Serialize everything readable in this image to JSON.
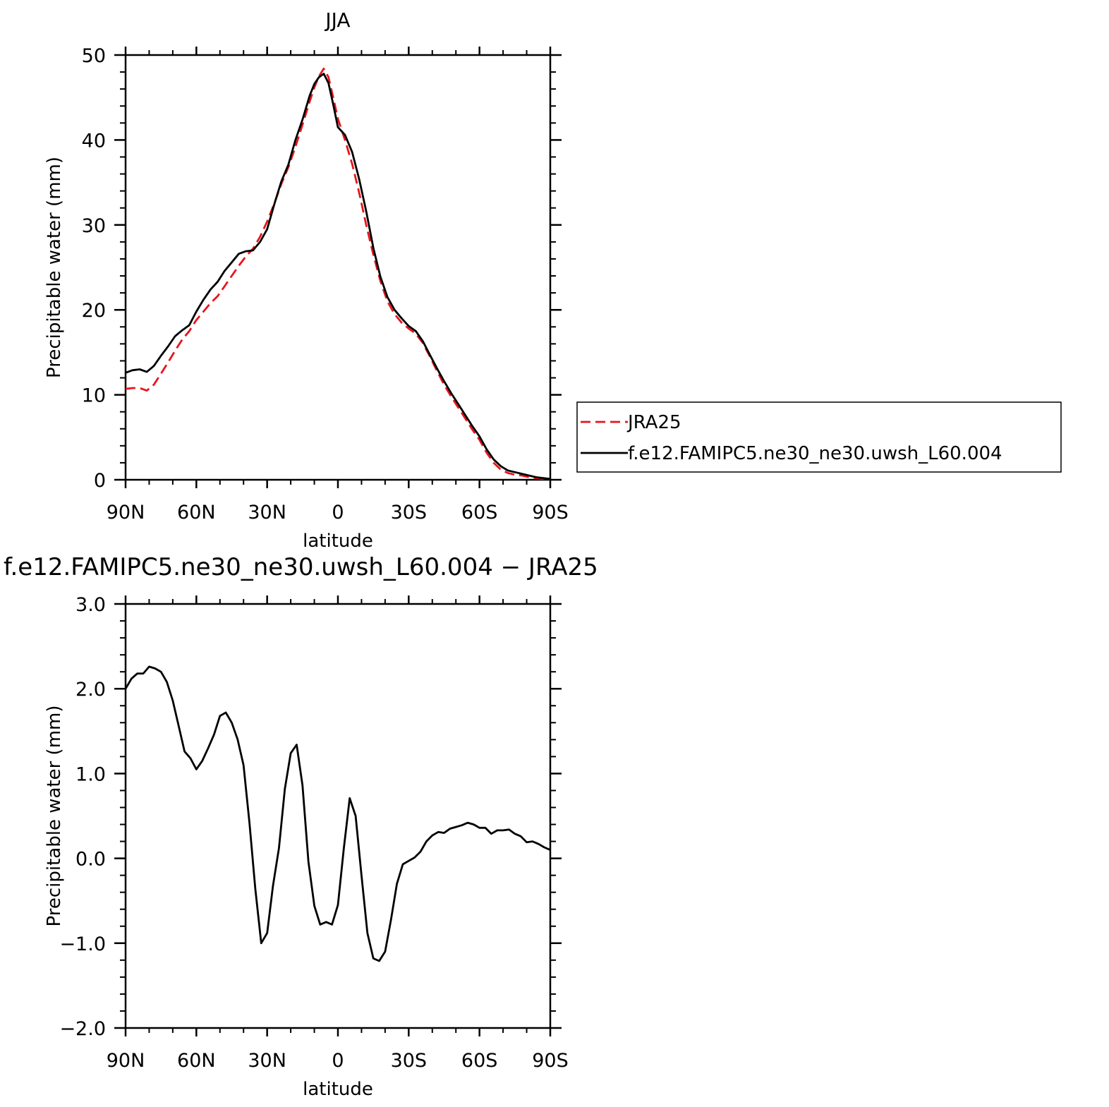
{
  "chart_data": [
    {
      "type": "line",
      "title": "JJA",
      "xlabel": "latitude",
      "ylabel": "Precipitable water (mm)",
      "xlim": [
        90,
        -90
      ],
      "ylim": [
        0,
        50
      ],
      "x_ticks": [
        90,
        60,
        30,
        0,
        -30,
        -60,
        -90
      ],
      "x_tick_labels": [
        "90N",
        "60N",
        "30N",
        "0",
        "30S",
        "60S",
        "90S"
      ],
      "y_ticks": [
        0,
        10,
        20,
        30,
        40,
        50
      ],
      "y_tick_labels": [
        "0",
        "10",
        "20",
        "30",
        "40",
        "50"
      ],
      "legend_position": "right",
      "series": [
        {
          "name": "JRA25",
          "color": "#e8141c",
          "dash": "dashed",
          "points": [
            [
              90,
              10.7
            ],
            [
              87,
              10.8
            ],
            [
              84,
              10.8
            ],
            [
              81,
              10.5
            ],
            [
              78,
              11.2
            ],
            [
              75,
              12.5
            ],
            [
              72,
              13.8
            ],
            [
              69,
              15.2
            ],
            [
              66,
              16.5
            ],
            [
              63,
              17.5
            ],
            [
              60,
              18.8
            ],
            [
              57,
              19.8
            ],
            [
              54,
              20.8
            ],
            [
              51,
              21.6
            ],
            [
              48,
              22.8
            ],
            [
              45,
              24.0
            ],
            [
              42,
              25.2
            ],
            [
              39,
              26.3
            ],
            [
              36,
              27.2
            ],
            [
              33,
              28.6
            ],
            [
              30,
              30.4
            ],
            [
              27,
              32.5
            ],
            [
              24,
              34.8
            ],
            [
              21,
              36.8
            ],
            [
              18,
              39.2
            ],
            [
              15,
              41.8
            ],
            [
              12,
              44.5
            ],
            [
              10,
              46.2
            ],
            [
              8,
              47.5
            ],
            [
              6,
              48.4
            ],
            [
              4,
              47.4
            ],
            [
              2,
              45.0
            ],
            [
              0,
              42.5
            ],
            [
              -3,
              40.0
            ],
            [
              -6,
              37.2
            ],
            [
              -9,
              33.8
            ],
            [
              -12,
              30.0
            ],
            [
              -15,
              26.5
            ],
            [
              -18,
              23.4
            ],
            [
              -21,
              21.0
            ],
            [
              -24,
              19.5
            ],
            [
              -27,
              18.5
            ],
            [
              -30,
              17.8
            ],
            [
              -33,
              17.2
            ],
            [
              -36,
              16.1
            ],
            [
              -39,
              14.5
            ],
            [
              -42,
              12.8
            ],
            [
              -45,
              11.2
            ],
            [
              -48,
              9.8
            ],
            [
              -51,
              8.5
            ],
            [
              -54,
              7.2
            ],
            [
              -57,
              5.9
            ],
            [
              -60,
              4.7
            ],
            [
              -63,
              3.2
            ],
            [
              -66,
              2.0
            ],
            [
              -69,
              1.2
            ],
            [
              -72,
              0.8
            ],
            [
              -75,
              0.6
            ],
            [
              -78,
              0.5
            ],
            [
              -81,
              0.3
            ],
            [
              -84,
              0.2
            ],
            [
              -87,
              0.1
            ],
            [
              -90,
              0.1
            ]
          ]
        },
        {
          "name": "f.e12.FAMIPC5.ne30_ne30.uwsh_L60.004",
          "color": "#000000",
          "dash": "solid",
          "points": [
            [
              90,
              12.6
            ],
            [
              87,
              12.9
            ],
            [
              84,
              13.0
            ],
            [
              81,
              12.7
            ],
            [
              78,
              13.4
            ],
            [
              75,
              14.6
            ],
            [
              72,
              15.7
            ],
            [
              69,
              16.9
            ],
            [
              66,
              17.6
            ],
            [
              63,
              18.2
            ],
            [
              60,
              19.8
            ],
            [
              57,
              21.2
            ],
            [
              54,
              22.4
            ],
            [
              51,
              23.3
            ],
            [
              48,
              24.6
            ],
            [
              45,
              25.6
            ],
            [
              42,
              26.6
            ],
            [
              39,
              26.9
            ],
            [
              36,
              27.0
            ],
            [
              33,
              28.0
            ],
            [
              30,
              29.5
            ],
            [
              27,
              32.4
            ],
            [
              24,
              35.1
            ],
            [
              21,
              37.1
            ],
            [
              18,
              40.0
            ],
            [
              15,
              42.4
            ],
            [
              12,
              45.2
            ],
            [
              10,
              46.6
            ],
            [
              8,
              47.4
            ],
            [
              6,
              47.8
            ],
            [
              4,
              46.7
            ],
            [
              2,
              44.2
            ],
            [
              0,
              41.5
            ],
            [
              -3,
              40.6
            ],
            [
              -6,
              38.6
            ],
            [
              -9,
              35.4
            ],
            [
              -12,
              31.6
            ],
            [
              -15,
              27.3
            ],
            [
              -18,
              23.9
            ],
            [
              -21,
              21.5
            ],
            [
              -24,
              20.0
            ],
            [
              -27,
              19.0
            ],
            [
              -30,
              18.1
            ],
            [
              -33,
              17.5
            ],
            [
              -36,
              16.3
            ],
            [
              -39,
              14.7
            ],
            [
              -42,
              13.1
            ],
            [
              -45,
              11.6
            ],
            [
              -48,
              10.2
            ],
            [
              -51,
              8.9
            ],
            [
              -54,
              7.6
            ],
            [
              -57,
              6.3
            ],
            [
              -60,
              5.1
            ],
            [
              -63,
              3.6
            ],
            [
              -66,
              2.4
            ],
            [
              -69,
              1.6
            ],
            [
              -72,
              1.1
            ],
            [
              -75,
              0.9
            ],
            [
              -78,
              0.7
            ],
            [
              -81,
              0.5
            ],
            [
              -84,
              0.3
            ],
            [
              -87,
              0.2
            ],
            [
              -90,
              0.1
            ]
          ]
        }
      ]
    },
    {
      "type": "line",
      "title": "f.e12.FAMIPC5.ne30_ne30.uwsh_L60.004 - JRA25",
      "xlabel": "latitude",
      "ylabel": "Precipitable water (mm)",
      "xlim": [
        90,
        -90
      ],
      "ylim": [
        -2.0,
        3.0
      ],
      "x_ticks": [
        90,
        60,
        30,
        0,
        -30,
        -60,
        -90
      ],
      "x_tick_labels": [
        "90N",
        "60N",
        "30N",
        "0",
        "30S",
        "60S",
        "90S"
      ],
      "y_ticks": [
        -2.0,
        -1.0,
        0.0,
        1.0,
        2.0,
        3.0
      ],
      "y_tick_labels": [
        "-2.0",
        "-1.0",
        "0.0",
        "1.0",
        "2.0",
        "3.0"
      ],
      "series": [
        {
          "name": "",
          "color": "#000000",
          "dash": "solid",
          "points": [
            [
              90,
              2.0
            ],
            [
              87.5,
              2.12
            ],
            [
              85,
              2.18
            ],
            [
              82.5,
              2.18
            ],
            [
              80,
              2.26
            ],
            [
              77.5,
              2.24
            ],
            [
              75,
              2.2
            ],
            [
              72.5,
              2.08
            ],
            [
              70,
              1.86
            ],
            [
              67.5,
              1.56
            ],
            [
              65,
              1.26
            ],
            [
              62.5,
              1.18
            ],
            [
              60,
              1.05
            ],
            [
              57.5,
              1.15
            ],
            [
              55,
              1.3
            ],
            [
              52.5,
              1.46
            ],
            [
              50,
              1.68
            ],
            [
              47.5,
              1.72
            ],
            [
              45,
              1.6
            ],
            [
              42.5,
              1.4
            ],
            [
              40,
              1.1
            ],
            [
              37.5,
              0.42
            ],
            [
              35,
              -0.36
            ],
            [
              32.5,
              -1.0
            ],
            [
              30,
              -0.88
            ],
            [
              27.5,
              -0.32
            ],
            [
              25,
              0.12
            ],
            [
              22.5,
              0.82
            ],
            [
              20,
              1.24
            ],
            [
              17.5,
              1.34
            ],
            [
              15,
              0.86
            ],
            [
              12.5,
              -0.04
            ],
            [
              10,
              -0.56
            ],
            [
              7.5,
              -0.78
            ],
            [
              5,
              -0.75
            ],
            [
              2.5,
              -0.78
            ],
            [
              0,
              -0.55
            ],
            [
              -2.5,
              0.12
            ],
            [
              -5,
              0.71
            ],
            [
              -7.5,
              0.5
            ],
            [
              -10,
              -0.2
            ],
            [
              -12.5,
              -0.88
            ],
            [
              -15,
              -1.18
            ],
            [
              -17.5,
              -1.21
            ],
            [
              -20,
              -1.1
            ],
            [
              -22.5,
              -0.72
            ],
            [
              -25,
              -0.3
            ],
            [
              -27.5,
              -0.07
            ],
            [
              -30,
              -0.03
            ],
            [
              -32.5,
              0.01
            ],
            [
              -35,
              0.08
            ],
            [
              -37.5,
              0.2
            ],
            [
              -40,
              0.27
            ],
            [
              -42.5,
              0.31
            ],
            [
              -45,
              0.3
            ],
            [
              -47.5,
              0.35
            ],
            [
              -50,
              0.37
            ],
            [
              -52.5,
              0.39
            ],
            [
              -55,
              0.42
            ],
            [
              -57.5,
              0.4
            ],
            [
              -60,
              0.36
            ],
            [
              -62.5,
              0.36
            ],
            [
              -65,
              0.29
            ],
            [
              -67.5,
              0.33
            ],
            [
              -70,
              0.33
            ],
            [
              -72.5,
              0.34
            ],
            [
              -75,
              0.29
            ],
            [
              -77.5,
              0.26
            ],
            [
              -80,
              0.19
            ],
            [
              -82.5,
              0.2
            ],
            [
              -85,
              0.17
            ],
            [
              -87.5,
              0.13
            ],
            [
              -90,
              0.1
            ]
          ]
        }
      ]
    }
  ]
}
